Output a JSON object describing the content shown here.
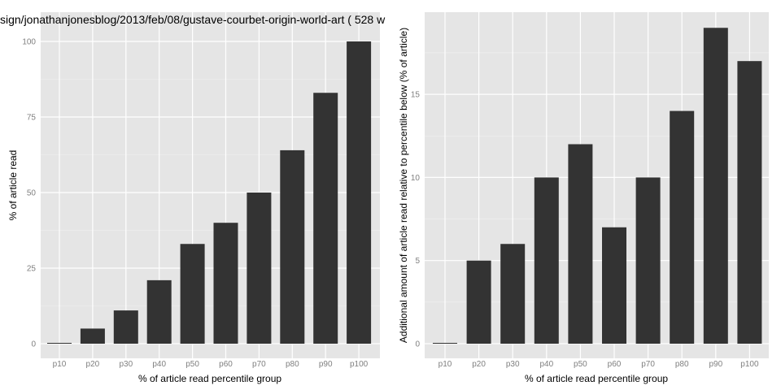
{
  "colors": {
    "panel": "#e5e5e5",
    "grid_major": "#ffffff",
    "grid_minor": "#f2f2f2",
    "bar": "#333333",
    "tick_text": "#7f7f7f"
  },
  "chart_data": [
    {
      "type": "bar",
      "title": "sign/jonathanjonesblog/2013/feb/08/gustave-courbet-origin-world-art ( 528 w",
      "xlabel": "% of article read percentile group",
      "ylabel": "% of article read",
      "categories": [
        "p10",
        "p20",
        "p30",
        "p40",
        "p50",
        "p60",
        "p70",
        "p80",
        "p90",
        "p100"
      ],
      "values": [
        0,
        5,
        11,
        21,
        33,
        40,
        50,
        64,
        83,
        100
      ],
      "yticks": [
        0,
        25,
        50,
        75,
        100
      ],
      "ylim": [
        0,
        100
      ],
      "grid": true,
      "legend": "none"
    },
    {
      "type": "bar",
      "title": "",
      "xlabel": "% of article read percentile group",
      "ylabel": "Additional amount of article read relative to percentile below (% of article)",
      "categories": [
        "p10",
        "p20",
        "p30",
        "p40",
        "p50",
        "p60",
        "p70",
        "p80",
        "p90",
        "p100"
      ],
      "values": [
        0,
        5,
        6,
        10,
        12,
        7,
        10,
        14,
        19,
        17
      ],
      "yticks": [
        0,
        5,
        10,
        15
      ],
      "ylim": [
        0,
        19
      ],
      "grid": true,
      "legend": "none"
    }
  ]
}
